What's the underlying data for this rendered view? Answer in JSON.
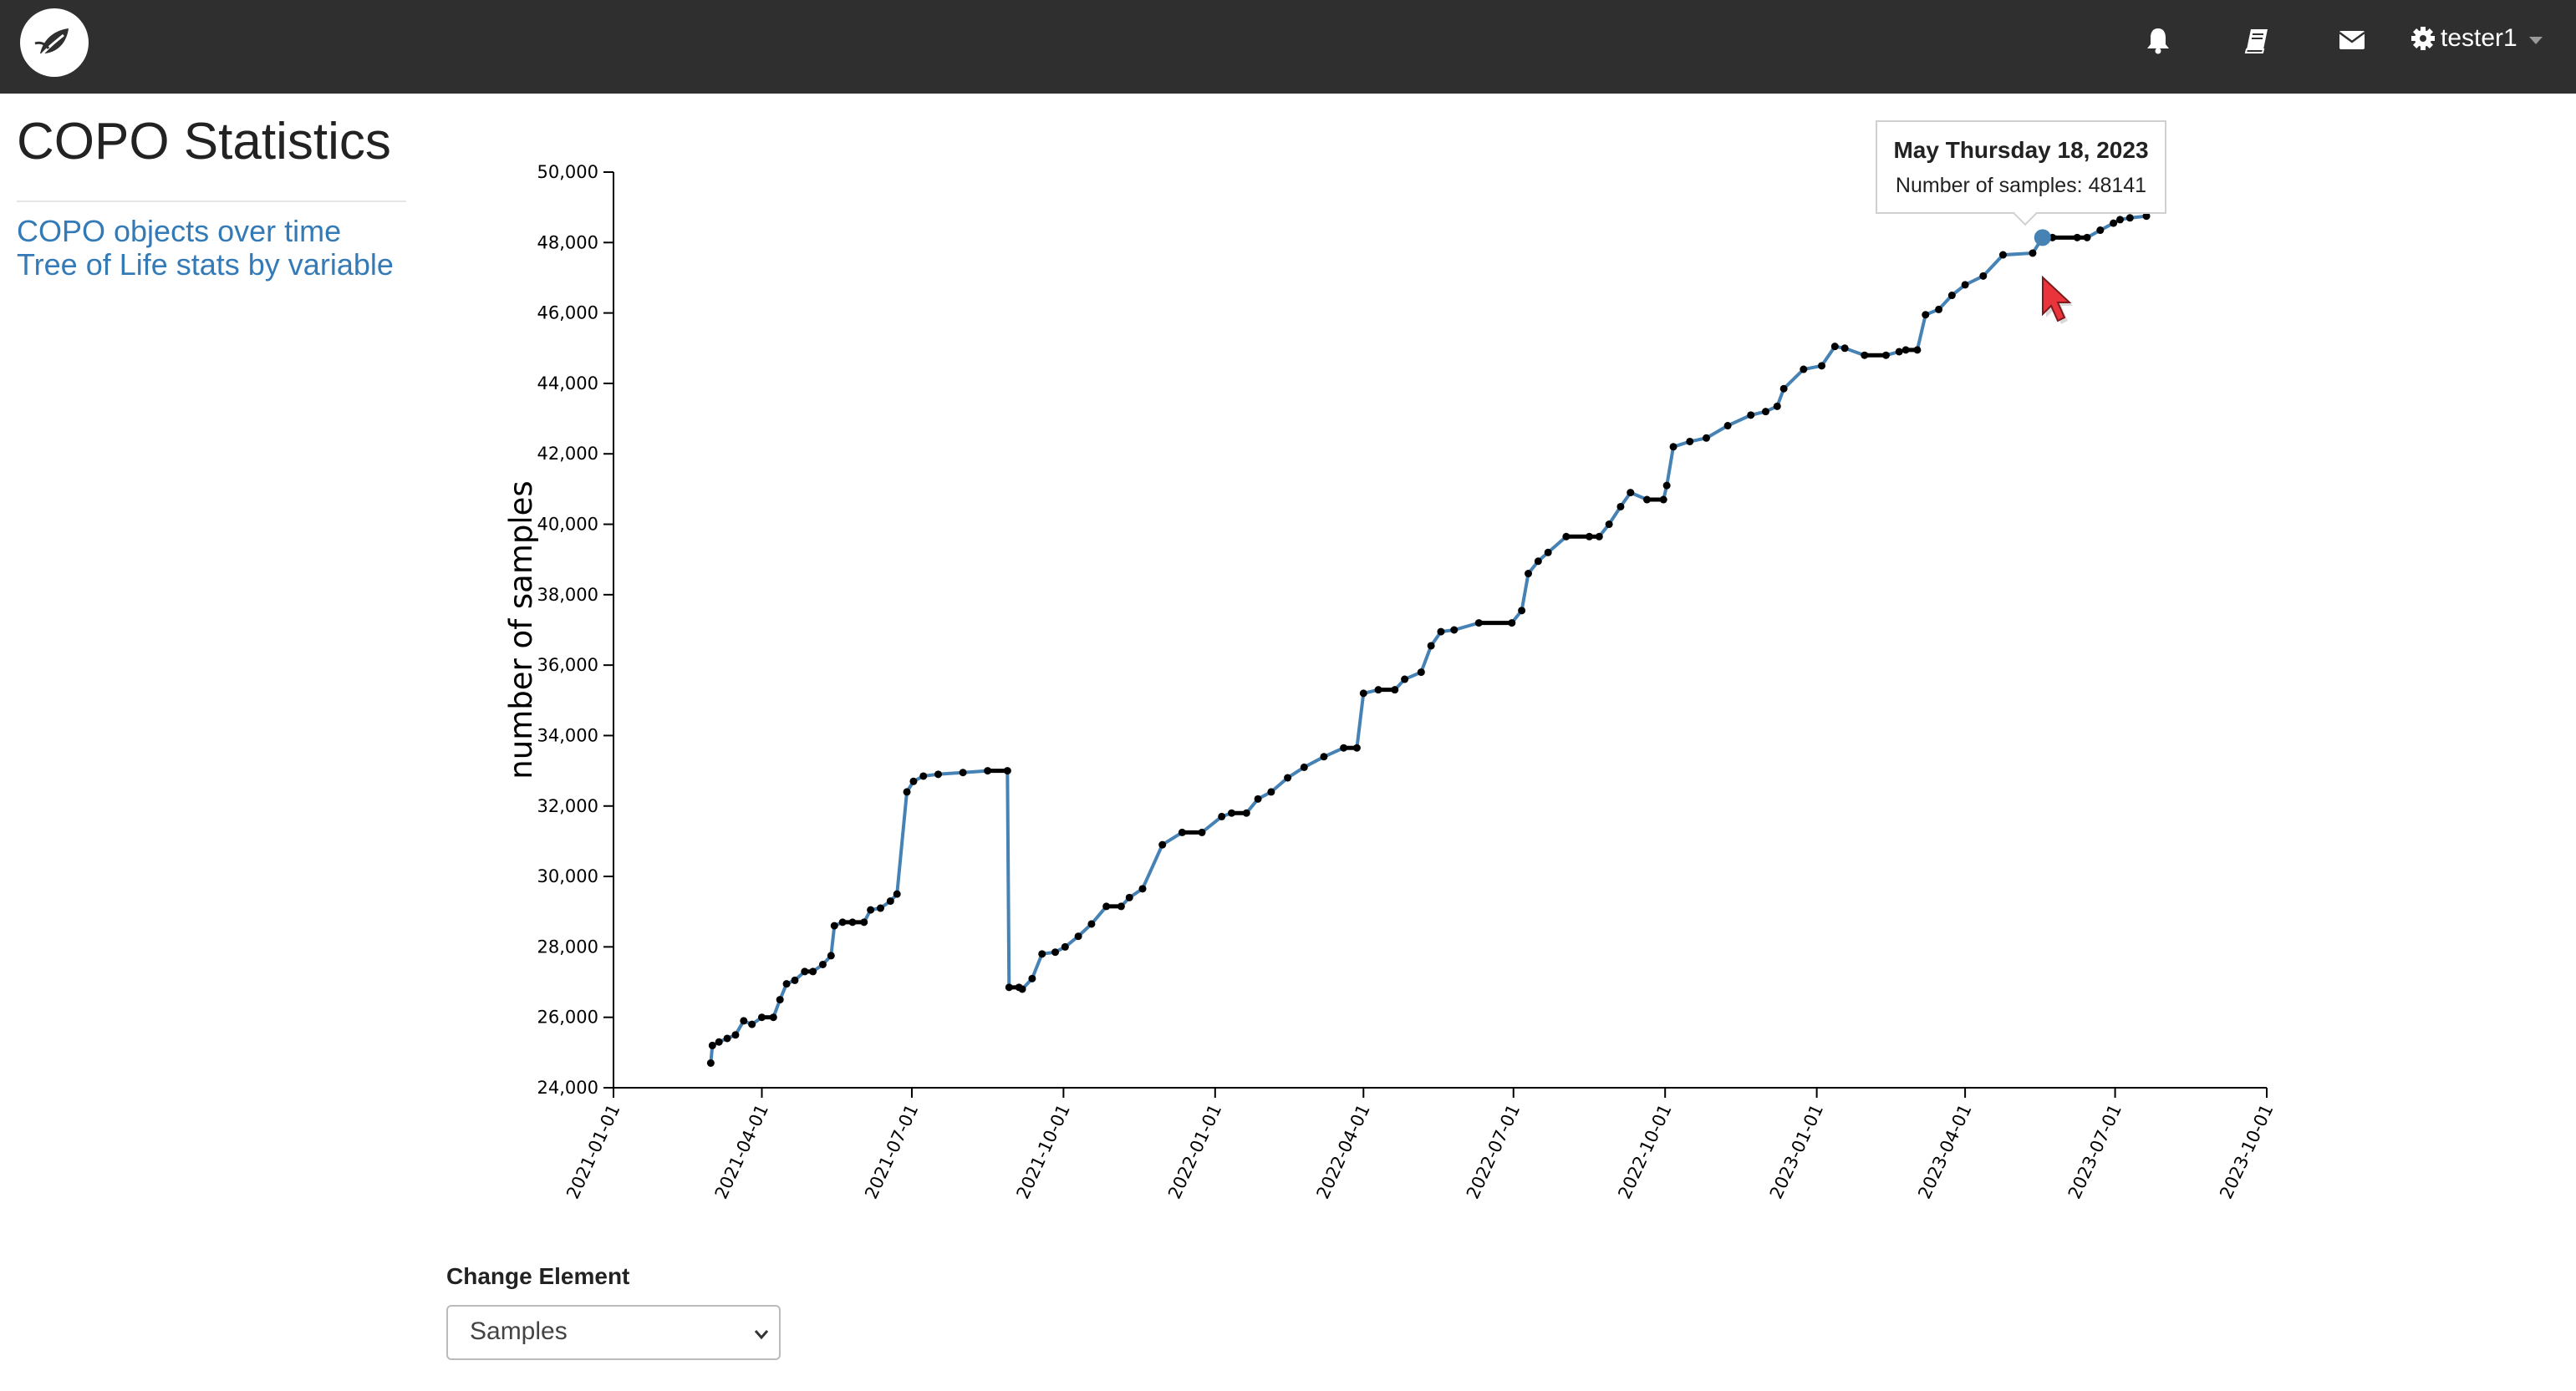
{
  "header": {
    "logo_icon": "leaf-logo-icon",
    "icons": [
      "bell-icon",
      "book-icon",
      "envelope-icon",
      "gear-icon"
    ],
    "username": "tester1"
  },
  "page": {
    "title": "COPO Statistics",
    "links": [
      "COPO objects over time",
      "Tree of Life stats by variable"
    ]
  },
  "tooltip": {
    "date": "May Thursday 18, 2023",
    "count_label": "Number of samples:",
    "count": "48141"
  },
  "control": {
    "label": "Change Element",
    "selected": "Samples"
  },
  "colors": {
    "header_bg": "#2f2f2f",
    "link": "#337ab7",
    "line": "#4682b4",
    "points": "#000000",
    "cursor": "#e8343a"
  },
  "chart_data": {
    "type": "line",
    "title": "",
    "xlabel": "",
    "ylabel": "number of samples",
    "ylim": [
      24000,
      50000
    ],
    "xlim": [
      "2021-01-01",
      "2023-10-01"
    ],
    "y_ticks": [
      "24,000",
      "26,000",
      "28,000",
      "30,000",
      "32,000",
      "34,000",
      "36,000",
      "38,000",
      "40,000",
      "42,000",
      "44,000",
      "46,000",
      "48,000",
      "50,000"
    ],
    "x_ticks": [
      "2021-01-01",
      "2021-04-01",
      "2021-07-01",
      "2021-10-01",
      "2022-01-01",
      "2022-04-01",
      "2022-07-01",
      "2022-10-01",
      "2023-01-01",
      "2023-04-01",
      "2023-07-01",
      "2023-10-01"
    ],
    "grid": false,
    "highlighted": {
      "x": "2023-05-18",
      "y": 48141
    },
    "series": [
      {
        "x": [
          "2021-03-01",
          "2021-03-02",
          "2021-03-06",
          "2021-03-11",
          "2021-03-16",
          "2021-03-21",
          "2021-03-26",
          "2021-04-01",
          "2021-04-08",
          "2021-04-12",
          "2021-04-16",
          "2021-04-21",
          "2021-04-27",
          "2021-05-02",
          "2021-05-08",
          "2021-05-13",
          "2021-05-15",
          "2021-05-20",
          "2021-05-26",
          "2021-06-02",
          "2021-06-06",
          "2021-06-12",
          "2021-06-18",
          "2021-06-22",
          "2021-06-28",
          "2021-07-02",
          "2021-07-08",
          "2021-07-17",
          "2021-08-01",
          "2021-08-16",
          "2021-08-28",
          "2021-08-29",
          "2021-09-04",
          "2021-09-06",
          "2021-09-12",
          "2021-09-18",
          "2021-09-26",
          "2021-10-02",
          "2021-10-10",
          "2021-10-18",
          "2021-10-27",
          "2021-11-05",
          "2021-11-10",
          "2021-11-18",
          "2021-11-30",
          "2021-12-12",
          "2021-12-24",
          "2022-01-05",
          "2022-01-11",
          "2022-01-20",
          "2022-01-27",
          "2022-02-04",
          "2022-02-14",
          "2022-02-24",
          "2022-03-08",
          "2022-03-20",
          "2022-03-28",
          "2022-04-01",
          "2022-04-10",
          "2022-04-20",
          "2022-04-26",
          "2022-05-06",
          "2022-05-12",
          "2022-05-18",
          "2022-05-26",
          "2022-06-10",
          "2022-06-30",
          "2022-07-06",
          "2022-07-10",
          "2022-07-16",
          "2022-07-22",
          "2022-08-02",
          "2022-08-16",
          "2022-08-22",
          "2022-08-28",
          "2022-09-04",
          "2022-09-10",
          "2022-09-20",
          "2022-09-30",
          "2022-10-02",
          "2022-10-06",
          "2022-10-16",
          "2022-10-26",
          "2022-11-08",
          "2022-11-22",
          "2022-12-01",
          "2022-12-08",
          "2022-12-12",
          "2022-12-24",
          "2023-01-04",
          "2023-01-12",
          "2023-01-18",
          "2023-01-30",
          "2023-02-12",
          "2023-02-20",
          "2023-02-24",
          "2023-03-03",
          "2023-03-08",
          "2023-03-16",
          "2023-03-24",
          "2023-04-01",
          "2023-04-12",
          "2023-04-24",
          "2023-05-12",
          "2023-05-18",
          "2023-05-24",
          "2023-06-08",
          "2023-06-14",
          "2023-06-22",
          "2023-06-30",
          "2023-07-04",
          "2023-07-10",
          "2023-07-20"
        ],
        "values": [
          24700,
          25200,
          25300,
          25400,
          25500,
          25900,
          25800,
          26000,
          26000,
          26500,
          26950,
          27050,
          27300,
          27300,
          27500,
          27750,
          28600,
          28700,
          28700,
          28700,
          29050,
          29100,
          29300,
          29500,
          32400,
          32700,
          32850,
          32900,
          32950,
          33000,
          33000,
          26850,
          26850,
          26800,
          27100,
          27800,
          27850,
          28000,
          28300,
          28650,
          29150,
          29150,
          29400,
          29650,
          30900,
          31250,
          31250,
          31700,
          31800,
          31800,
          32200,
          32400,
          32800,
          33100,
          33400,
          33650,
          33650,
          35200,
          35300,
          35300,
          35600,
          35800,
          36550,
          36950,
          37000,
          37200,
          37200,
          37550,
          38600,
          38950,
          39200,
          39650,
          39650,
          39650,
          40000,
          40500,
          40900,
          40700,
          40700,
          41100,
          42200,
          42350,
          42450,
          42800,
          43100,
          43200,
          43350,
          43850,
          44400,
          44500,
          45050,
          45000,
          44800,
          44800,
          44900,
          44950,
          44950,
          45950,
          46100,
          46500,
          46800,
          47050,
          47650,
          47700,
          48141,
          48141,
          48141,
          48141,
          48350,
          48550,
          48650,
          48700,
          48750
        ]
      }
    ]
  }
}
